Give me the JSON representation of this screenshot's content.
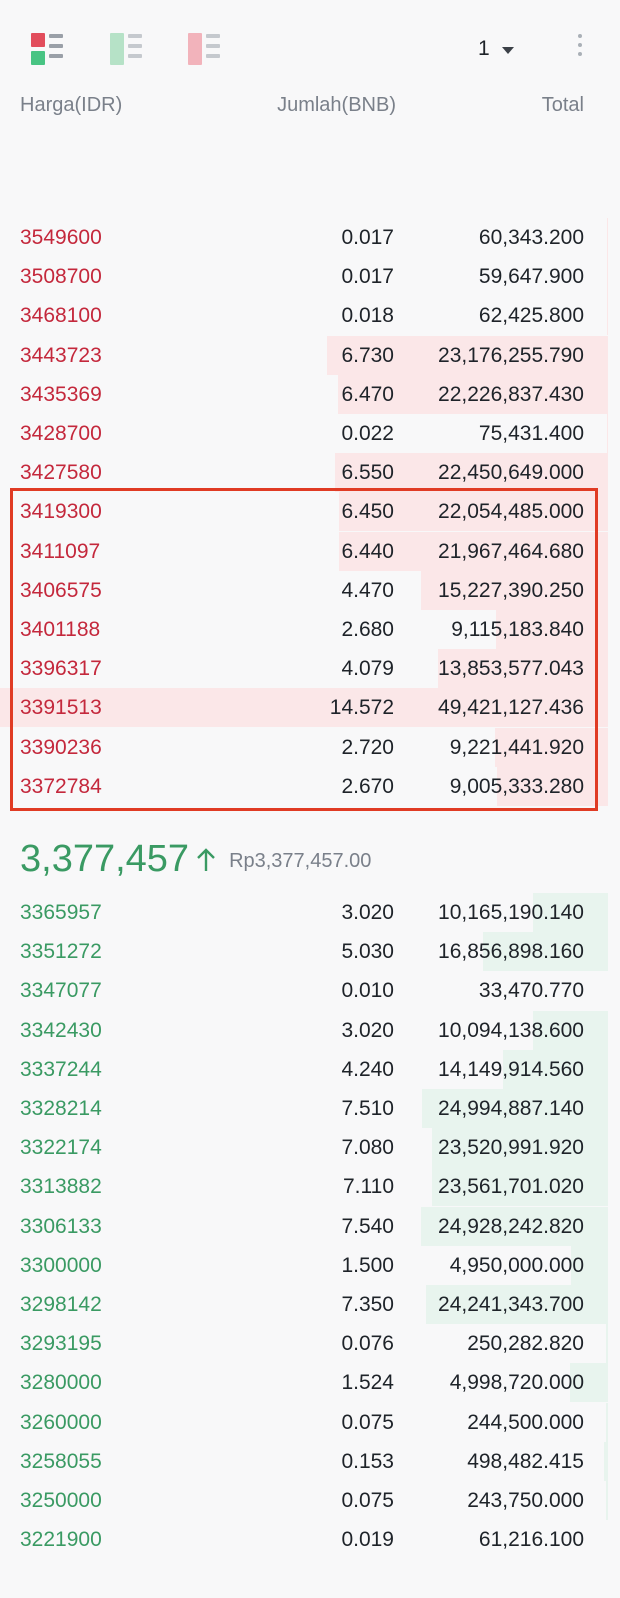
{
  "toolbar": {
    "views": [
      {
        "name": "both-sides-view-icon",
        "active": true
      },
      {
        "name": "bids-only-view-icon",
        "active": false
      },
      {
        "name": "asks-only-view-icon",
        "active": false
      }
    ],
    "depth_value": "1",
    "more_icon": "more-vertical-icon"
  },
  "headers": {
    "price": "Harga(IDR)",
    "amount": "Jumlah(BNB)",
    "total": "Total"
  },
  "colors": {
    "ask": "#c4283c",
    "bid": "#3a9a63",
    "ask_depth": "#fbe7e8",
    "bid_depth": "#e8f4ee",
    "highlight": "#e03b24"
  },
  "asks": [
    {
      "price": "3549600",
      "amount": "0.017",
      "total": "60,343.200"
    },
    {
      "price": "3508700",
      "amount": "0.017",
      "total": "59,647.900"
    },
    {
      "price": "3468100",
      "amount": "0.018",
      "total": "62,425.800"
    },
    {
      "price": "3443723",
      "amount": "6.730",
      "total": "23,176,255.790"
    },
    {
      "price": "3435369",
      "amount": "6.470",
      "total": "22,226,837.430"
    },
    {
      "price": "3428700",
      "amount": "0.022",
      "total": "75,431.400"
    },
    {
      "price": "3427580",
      "amount": "6.550",
      "total": "22,450,649.000"
    },
    {
      "price": "3419300",
      "amount": "6.450",
      "total": "22,054,485.000"
    },
    {
      "price": "3411097",
      "amount": "6.440",
      "total": "21,967,464.680"
    },
    {
      "price": "3406575",
      "amount": "4.470",
      "total": "15,227,390.250"
    },
    {
      "price": "3401188",
      "amount": "2.680",
      "total": "9,115,183.840"
    },
    {
      "price": "3396317",
      "amount": "4.079",
      "total": "13,853,577.043"
    },
    {
      "price": "3391513",
      "amount": "14.572",
      "total": "49,421,127.436"
    },
    {
      "price": "3390236",
      "amount": "2.720",
      "total": "9,221,441.920"
    },
    {
      "price": "3372784",
      "amount": "2.670",
      "total": "9,005,333.280"
    }
  ],
  "last_trade": {
    "price": "3,377,457",
    "fiat": "Rp3,377,457.00",
    "direction": "up"
  },
  "bids": [
    {
      "price": "3365957",
      "amount": "3.020",
      "total": "10,165,190.140"
    },
    {
      "price": "3351272",
      "amount": "5.030",
      "total": "16,856,898.160"
    },
    {
      "price": "3347077",
      "amount": "0.010",
      "total": "33,470.770"
    },
    {
      "price": "3342430",
      "amount": "3.020",
      "total": "10,094,138.600"
    },
    {
      "price": "3337244",
      "amount": "4.240",
      "total": "14,149,914.560"
    },
    {
      "price": "3328214",
      "amount": "7.510",
      "total": "24,994,887.140"
    },
    {
      "price": "3322174",
      "amount": "7.080",
      "total": "23,520,991.920"
    },
    {
      "price": "3313882",
      "amount": "7.110",
      "total": "23,561,701.020"
    },
    {
      "price": "3306133",
      "amount": "7.540",
      "total": "24,928,242.820"
    },
    {
      "price": "3300000",
      "amount": "1.500",
      "total": "4,950,000.000"
    },
    {
      "price": "3298142",
      "amount": "7.350",
      "total": "24,241,343.700"
    },
    {
      "price": "3293195",
      "amount": "0.076",
      "total": "250,282.820"
    },
    {
      "price": "3280000",
      "amount": "1.524",
      "total": "4,998,720.000"
    },
    {
      "price": "3260000",
      "amount": "0.075",
      "total": "244,500.000"
    },
    {
      "price": "3258055",
      "amount": "0.153",
      "total": "498,482.415"
    },
    {
      "price": "3250000",
      "amount": "0.075",
      "total": "243,750.000"
    },
    {
      "price": "3221900",
      "amount": "0.019",
      "total": "61,216.100"
    }
  ]
}
